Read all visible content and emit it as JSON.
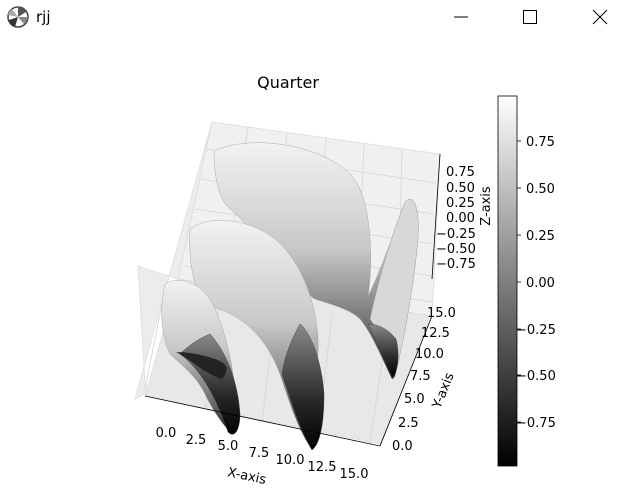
{
  "window": {
    "title": "rjj",
    "icon": "matplotlib-logo-icon",
    "controls": [
      "minimize-icon",
      "maximize-icon",
      "close-icon"
    ]
  },
  "chart_data": {
    "type": "surface3d",
    "title": "Quarter",
    "xlabel": "X-axis",
    "ylabel": "Y-axis",
    "zlabel": "Z-axis",
    "colormap": "gray",
    "x_ticks": [
      "0.0",
      "2.5",
      "5.0",
      "7.5",
      "10.0",
      "12.5",
      "15.0"
    ],
    "y_ticks": [
      "0.0",
      "2.5",
      "5.0",
      "7.5",
      "10.0",
      "12.5",
      "15.0"
    ],
    "z_ticks": [
      "0.75",
      "0.50",
      "0.25",
      "0.00",
      "−0.25",
      "−0.50",
      "−0.75"
    ],
    "colorbar_ticks": [
      "0.75",
      "0.50",
      "0.25",
      "0.00",
      "−0.25",
      "−0.50",
      "−0.75"
    ],
    "xlim": [
      -1,
      16
    ],
    "ylim": [
      -1,
      16
    ],
    "zlim": [
      -1,
      1
    ],
    "colorbar_range": [
      -1,
      1
    ],
    "grid": true
  }
}
